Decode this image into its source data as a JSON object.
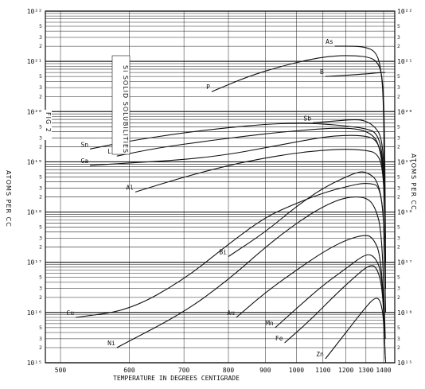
{
  "chart_data": {
    "type": "line",
    "title": "Si SOLID SOLUBILITIES",
    "figure_label": "FIG 2",
    "xlabel": "TEMPERATURE   IN   DEGREES   CENTIGRADE",
    "ylabel": "ATOMS PER CC",
    "ylabel_left": "ATOMS PER CC",
    "x_scale": "reciprocal_temperature",
    "y_scale": "log",
    "xlim": [
      500,
      1420
    ],
    "ylim": [
      1000000000000000.0,
      1e+22
    ],
    "x_ticks": [
      "500",
      "600",
      "700",
      "800",
      "900",
      "1000",
      "1100",
      "1200",
      "1300",
      "1400"
    ],
    "y_decades": [
      {
        "exp": 22,
        "left": "10²²",
        "right": "10²²"
      },
      {
        "exp": 21,
        "left": "10²¹",
        "right": "10²¹"
      },
      {
        "exp": 20,
        "left": "10²⁰",
        "right": "10²⁰"
      },
      {
        "exp": 19,
        "left": "10¹⁹",
        "right": "10¹⁹"
      },
      {
        "exp": 18,
        "left": "10¹⁸",
        "right": "10¹⁸"
      },
      {
        "exp": 17,
        "left": "10¹⁷",
        "right": "10¹⁷"
      },
      {
        "exp": 16,
        "left": "10¹⁶",
        "right": "10¹⁶"
      },
      {
        "exp": 15,
        "left": "10¹⁵",
        "right": "10¹⁵"
      }
    ],
    "series": [
      {
        "name": "As",
        "points": [
          [
            1150,
            2e+21
          ],
          [
            1250,
            2e+21
          ],
          [
            1300,
            1.9e+21
          ],
          [
            1350,
            1.6e+21
          ],
          [
            1380,
            9e+20
          ],
          [
            1400,
            2e+20
          ],
          [
            1410,
            5e+17
          ]
        ]
      },
      {
        "name": "P",
        "points": [
          [
            760,
            2.5e+20
          ],
          [
            850,
            5e+20
          ],
          [
            950,
            8e+20
          ],
          [
            1050,
            1.1e+21
          ],
          [
            1150,
            1.3e+21
          ],
          [
            1250,
            1.3e+21
          ],
          [
            1320,
            1.2e+21
          ],
          [
            1360,
            1e+21
          ],
          [
            1390,
            6e+20
          ],
          [
            1405,
            1e+20
          ],
          [
            1412,
            1e+17
          ]
        ]
      },
      {
        "name": "B",
        "points": [
          [
            1110,
            5e+20
          ],
          [
            1200,
            5.3e+20
          ],
          [
            1300,
            5.6e+20
          ],
          [
            1380,
            6e+20
          ],
          [
            1410,
            6e+20
          ]
        ]
      },
      {
        "name": "Sb",
        "points": [
          [
            1060,
            6e+19
          ],
          [
            1150,
            6.5e+19
          ],
          [
            1250,
            7e+19
          ],
          [
            1300,
            6.5e+19
          ],
          [
            1350,
            5e+19
          ],
          [
            1390,
            3e+19
          ],
          [
            1405,
            5e+18
          ],
          [
            1412,
            3e+16
          ]
        ]
      },
      {
        "name": "Sn",
        "points": [
          [
            540,
            1.8e+19
          ],
          [
            600,
            2.6e+19
          ],
          [
            700,
            3.8e+19
          ],
          [
            800,
            4.8e+19
          ],
          [
            900,
            5.6e+19
          ],
          [
            1000,
            5.9e+19
          ],
          [
            1100,
            5.7e+19
          ],
          [
            1200,
            5.2e+19
          ],
          [
            1300,
            4.6e+19
          ],
          [
            1360,
            3.8e+19
          ],
          [
            1395,
            1.5e+19
          ],
          [
            1410,
            1e+18
          ]
        ]
      },
      {
        "name": "Li",
        "points": [
          [
            580,
            1.3e+19
          ],
          [
            650,
            1.9e+19
          ],
          [
            750,
            2.6e+19
          ],
          [
            850,
            3.3e+19
          ],
          [
            950,
            3.9e+19
          ],
          [
            1050,
            4.4e+19
          ],
          [
            1150,
            4.7e+19
          ],
          [
            1250,
            4.6e+19
          ],
          [
            1320,
            3.8e+19
          ],
          [
            1370,
            2.5e+19
          ],
          [
            1400,
            6e+18
          ],
          [
            1412,
            3e+17
          ]
        ]
      },
      {
        "name": "Ga",
        "points": [
          [
            540,
            8.5e+18
          ],
          [
            600,
            9.5e+18
          ],
          [
            700,
            1.1e+19
          ],
          [
            800,
            1.4e+19
          ],
          [
            900,
            1.9e+19
          ],
          [
            1000,
            2.5e+19
          ],
          [
            1100,
            3.1e+19
          ],
          [
            1200,
            3.4e+19
          ],
          [
            1300,
            3.3e+19
          ],
          [
            1360,
            2.7e+19
          ],
          [
            1395,
            1.2e+19
          ],
          [
            1410,
            1e+18
          ]
        ]
      },
      {
        "name": "Al",
        "points": [
          [
            610,
            2.5e+18
          ],
          [
            700,
            5e+18
          ],
          [
            800,
            8.5e+18
          ],
          [
            900,
            1.2e+19
          ],
          [
            1000,
            1.5e+19
          ],
          [
            1100,
            1.7e+19
          ],
          [
            1200,
            1.8e+19
          ],
          [
            1300,
            1.7e+19
          ],
          [
            1360,
            1.5e+19
          ],
          [
            1395,
            8e+18
          ],
          [
            1410,
            7e+17
          ]
        ]
      },
      {
        "name": "Cu",
        "points": [
          [
            520,
            8000000000000000.0
          ],
          [
            600,
            1.1e+16
          ],
          [
            700,
            4.5e+16
          ],
          [
            800,
            2.3e+17
          ],
          [
            900,
            8e+17
          ],
          [
            1000,
            1.5e+18
          ],
          [
            1100,
            2.4e+18
          ],
          [
            1200,
            3.2e+18
          ],
          [
            1300,
            3.9e+18
          ],
          [
            1400,
            3.2e+18
          ],
          [
            1412,
            1e+16
          ]
        ]
      },
      {
        "name": "Bi",
        "points": [
          [
            800,
            1.3e+17
          ],
          [
            900,
            4e+17
          ],
          [
            1000,
            1.3e+18
          ],
          [
            1100,
            3e+18
          ],
          [
            1200,
            5e+18
          ],
          [
            1270,
            6.5e+18
          ],
          [
            1310,
            6e+18
          ],
          [
            1360,
            4.5e+18
          ],
          [
            1395,
            1.5e+18
          ],
          [
            1410,
            1e+17
          ]
        ]
      },
      {
        "name": "Ni",
        "points": [
          [
            580,
            2000000000000000.0
          ],
          [
            700,
            1e+16
          ],
          [
            800,
            4.5e+16
          ],
          [
            900,
            2e+17
          ],
          [
            1000,
            6e+17
          ],
          [
            1100,
            1.3e+18
          ],
          [
            1200,
            2e+18
          ],
          [
            1300,
            2e+18
          ],
          [
            1350,
            1.3e+18
          ],
          [
            1390,
            4e+17
          ],
          [
            1410,
            3000000000000000.0
          ]
        ]
      },
      {
        "name": "Au",
        "points": [
          [
            820,
            8000000000000000.0
          ],
          [
            900,
            2.5e+16
          ],
          [
            1000,
            7e+16
          ],
          [
            1100,
            1.6e+17
          ],
          [
            1200,
            2.8e+17
          ],
          [
            1300,
            3.6e+17
          ],
          [
            1340,
            3e+17
          ],
          [
            1380,
            1.5e+17
          ],
          [
            1405,
            1e+16
          ]
        ]
      },
      {
        "name": "Mn",
        "points": [
          [
            930,
            5000000000000000.0
          ],
          [
            1000,
            1.2e+16
          ],
          [
            1100,
            3.5e+16
          ],
          [
            1200,
            7.5e+16
          ],
          [
            1300,
            1.5e+17
          ],
          [
            1350,
            1.3e+17
          ],
          [
            1390,
            6e+16
          ],
          [
            1408,
            3000000000000000.0
          ]
        ]
      },
      {
        "name": "Fe",
        "points": [
          [
            960,
            2500000000000000.0
          ],
          [
            1050,
            7000000000000000.0
          ],
          [
            1150,
            2.2e+16
          ],
          [
            1250,
            5.5e+16
          ],
          [
            1320,
            9e+16
          ],
          [
            1360,
            8e+16
          ],
          [
            1395,
            3e+16
          ],
          [
            1410,
            1200000000000000.0
          ]
        ]
      },
      {
        "name": "Zn",
        "points": [
          [
            1110,
            1200000000000000.0
          ],
          [
            1200,
            4000000000000000.0
          ],
          [
            1300,
            1.3e+16
          ],
          [
            1350,
            2e+16
          ],
          [
            1380,
            1.8e+16
          ],
          [
            1400,
            8000000000000000.0
          ],
          [
            1412,
            1000000000000000.0
          ]
        ]
      }
    ]
  },
  "series_labels": {
    "As": "As",
    "P": "P",
    "B": "B",
    "Sb": "Sb",
    "Sn": "Sn",
    "Li": "Li",
    "Ga": "Ga",
    "Al": "Al",
    "Cu": "Cu",
    "Bi": "Bi",
    "Ni": "Ni",
    "Au": "Au",
    "Mn": "Mn",
    "Fe": "Fe",
    "Zn": "Zn"
  }
}
